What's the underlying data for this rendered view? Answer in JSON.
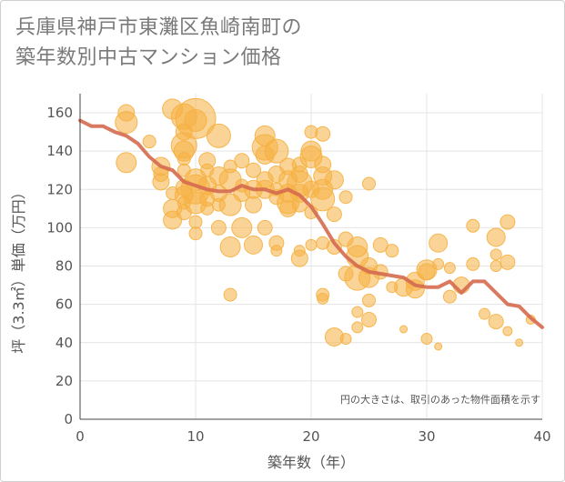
{
  "chart_data": {
    "type": "scatter",
    "title_lines": [
      "兵庫県神戸市東灘区魚崎南町の",
      "築年数別中古マンション価格"
    ],
    "xlabel": "築年数（年）",
    "ylabel": "坪（3.3㎡）単価（万円）",
    "note": "円の大きさは、取引のあった物件面積を示す",
    "xlim": [
      0,
      40
    ],
    "ylim": [
      0,
      170
    ],
    "xticks": [
      "0",
      "10",
      "20",
      "30",
      "40"
    ],
    "yticks": [
      "0",
      "20",
      "40",
      "60",
      "80",
      "100",
      "120",
      "140",
      "160"
    ],
    "grid": true,
    "colors": {
      "bubble": "#f5b041",
      "line": "#d46a4f",
      "grid": "#e4e4e4"
    },
    "series": [
      {
        "kind": "bubble",
        "points": [
          {
            "x": 4,
            "y": 160,
            "r": 9
          },
          {
            "x": 4,
            "y": 155,
            "r": 12
          },
          {
            "x": 4,
            "y": 134,
            "r": 11
          },
          {
            "x": 6,
            "y": 145,
            "r": 7
          },
          {
            "x": 7,
            "y": 132,
            "r": 10
          },
          {
            "x": 7,
            "y": 128,
            "r": 8
          },
          {
            "x": 7,
            "y": 124,
            "r": 9
          },
          {
            "x": 8,
            "y": 162,
            "r": 11
          },
          {
            "x": 8,
            "y": 110,
            "r": 10
          },
          {
            "x": 8,
            "y": 104,
            "r": 10
          },
          {
            "x": 8,
            "y": 118,
            "r": 7
          },
          {
            "x": 9,
            "y": 158,
            "r": 14
          },
          {
            "x": 9,
            "y": 150,
            "r": 9
          },
          {
            "x": 9,
            "y": 143,
            "r": 14
          },
          {
            "x": 9,
            "y": 140,
            "r": 11
          },
          {
            "x": 9,
            "y": 136,
            "r": 7
          },
          {
            "x": 9,
            "y": 130,
            "r": 7
          },
          {
            "x": 9,
            "y": 121,
            "r": 9
          },
          {
            "x": 9,
            "y": 117,
            "r": 10
          },
          {
            "x": 9,
            "y": 113,
            "r": 7
          },
          {
            "x": 9,
            "y": 108,
            "r": 8
          },
          {
            "x": 10,
            "y": 157,
            "r": 22
          },
          {
            "x": 10,
            "y": 156,
            "r": 12
          },
          {
            "x": 10,
            "y": 125,
            "r": 12
          },
          {
            "x": 10,
            "y": 120,
            "r": 16
          },
          {
            "x": 10,
            "y": 113,
            "r": 12
          },
          {
            "x": 10,
            "y": 103,
            "r": 7
          },
          {
            "x": 10,
            "y": 97,
            "r": 7
          },
          {
            "x": 11,
            "y": 135,
            "r": 9
          },
          {
            "x": 11,
            "y": 130,
            "r": 7
          },
          {
            "x": 11,
            "y": 122,
            "r": 10
          },
          {
            "x": 11,
            "y": 115,
            "r": 8
          },
          {
            "x": 11,
            "y": 110,
            "r": 7
          },
          {
            "x": 12,
            "y": 148,
            "r": 13
          },
          {
            "x": 12,
            "y": 127,
            "r": 10
          },
          {
            "x": 12,
            "y": 118,
            "r": 9
          },
          {
            "x": 12,
            "y": 112,
            "r": 7
          },
          {
            "x": 12,
            "y": 100,
            "r": 8
          },
          {
            "x": 13,
            "y": 132,
            "r": 7
          },
          {
            "x": 13,
            "y": 125,
            "r": 12
          },
          {
            "x": 13,
            "y": 112,
            "r": 12
          },
          {
            "x": 13,
            "y": 90,
            "r": 11
          },
          {
            "x": 13,
            "y": 65,
            "r": 7
          },
          {
            "x": 14,
            "y": 135,
            "r": 8
          },
          {
            "x": 14,
            "y": 122,
            "r": 7
          },
          {
            "x": 14,
            "y": 118,
            "r": 9
          },
          {
            "x": 14,
            "y": 100,
            "r": 11
          },
          {
            "x": 15,
            "y": 130,
            "r": 8
          },
          {
            "x": 15,
            "y": 120,
            "r": 10
          },
          {
            "x": 15,
            "y": 112,
            "r": 9
          },
          {
            "x": 15,
            "y": 91,
            "r": 10
          },
          {
            "x": 16,
            "y": 148,
            "r": 11
          },
          {
            "x": 16,
            "y": 142,
            "r": 14
          },
          {
            "x": 16,
            "y": 138,
            "r": 10
          },
          {
            "x": 16,
            "y": 125,
            "r": 9
          },
          {
            "x": 16,
            "y": 120,
            "r": 10
          },
          {
            "x": 16,
            "y": 100,
            "r": 8
          },
          {
            "x": 17,
            "y": 140,
            "r": 13
          },
          {
            "x": 17,
            "y": 128,
            "r": 9
          },
          {
            "x": 17,
            "y": 120,
            "r": 7
          },
          {
            "x": 17,
            "y": 116,
            "r": 8
          },
          {
            "x": 17,
            "y": 92,
            "r": 8
          },
          {
            "x": 17,
            "y": 88,
            "r": 6
          },
          {
            "x": 18,
            "y": 132,
            "r": 9
          },
          {
            "x": 18,
            "y": 125,
            "r": 10
          },
          {
            "x": 18,
            "y": 118,
            "r": 10
          },
          {
            "x": 18,
            "y": 113,
            "r": 12
          },
          {
            "x": 18,
            "y": 110,
            "r": 9
          },
          {
            "x": 19,
            "y": 133,
            "r": 8
          },
          {
            "x": 19,
            "y": 128,
            "r": 9
          },
          {
            "x": 19,
            "y": 123,
            "r": 14
          },
          {
            "x": 19,
            "y": 118,
            "r": 10
          },
          {
            "x": 19,
            "y": 112,
            "r": 8
          },
          {
            "x": 19,
            "y": 88,
            "r": 6
          },
          {
            "x": 19,
            "y": 84,
            "r": 9
          },
          {
            "x": 20,
            "y": 150,
            "r": 7
          },
          {
            "x": 20,
            "y": 140,
            "r": 11
          },
          {
            "x": 20,
            "y": 137,
            "r": 12
          },
          {
            "x": 20,
            "y": 120,
            "r": 9
          },
          {
            "x": 20,
            "y": 108,
            "r": 7
          },
          {
            "x": 20,
            "y": 91,
            "r": 6
          },
          {
            "x": 21,
            "y": 149,
            "r": 8
          },
          {
            "x": 21,
            "y": 133,
            "r": 9
          },
          {
            "x": 21,
            "y": 127,
            "r": 10
          },
          {
            "x": 21,
            "y": 120,
            "r": 11
          },
          {
            "x": 21,
            "y": 115,
            "r": 13
          },
          {
            "x": 21,
            "y": 92,
            "r": 7
          },
          {
            "x": 21,
            "y": 65,
            "r": 7
          },
          {
            "x": 21,
            "y": 63,
            "r": 6
          },
          {
            "x": 22,
            "y": 125,
            "r": 10
          },
          {
            "x": 22,
            "y": 107,
            "r": 8
          },
          {
            "x": 22,
            "y": 90,
            "r": 8
          },
          {
            "x": 22,
            "y": 43,
            "r": 10
          },
          {
            "x": 23,
            "y": 116,
            "r": 7
          },
          {
            "x": 23,
            "y": 94,
            "r": 8
          },
          {
            "x": 23,
            "y": 76,
            "r": 8
          },
          {
            "x": 23,
            "y": 42,
            "r": 6
          },
          {
            "x": 24,
            "y": 90,
            "r": 11
          },
          {
            "x": 24,
            "y": 85,
            "r": 12
          },
          {
            "x": 24,
            "y": 74,
            "r": 14
          },
          {
            "x": 24,
            "y": 56,
            "r": 6
          },
          {
            "x": 24,
            "y": 48,
            "r": 6
          },
          {
            "x": 25,
            "y": 123,
            "r": 7
          },
          {
            "x": 25,
            "y": 80,
            "r": 9
          },
          {
            "x": 25,
            "y": 74,
            "r": 11
          },
          {
            "x": 25,
            "y": 62,
            "r": 7
          },
          {
            "x": 25,
            "y": 52,
            "r": 8
          },
          {
            "x": 26,
            "y": 91,
            "r": 8
          },
          {
            "x": 26,
            "y": 77,
            "r": 8
          },
          {
            "x": 27,
            "y": 88,
            "r": 7
          },
          {
            "x": 27,
            "y": 69,
            "r": 6
          },
          {
            "x": 28,
            "y": 69,
            "r": 10
          },
          {
            "x": 28,
            "y": 47,
            "r": 4
          },
          {
            "x": 29,
            "y": 72,
            "r": 10
          },
          {
            "x": 29,
            "y": 68,
            "r": 10
          },
          {
            "x": 30,
            "y": 78,
            "r": 11
          },
          {
            "x": 30,
            "y": 77,
            "r": 9
          },
          {
            "x": 30,
            "y": 42,
            "r": 6
          },
          {
            "x": 31,
            "y": 92,
            "r": 10
          },
          {
            "x": 31,
            "y": 81,
            "r": 6
          },
          {
            "x": 31,
            "y": 38,
            "r": 4
          },
          {
            "x": 32,
            "y": 79,
            "r": 6
          },
          {
            "x": 32,
            "y": 64,
            "r": 7
          },
          {
            "x": 33,
            "y": 70,
            "r": 9
          },
          {
            "x": 34,
            "y": 101,
            "r": 7
          },
          {
            "x": 34,
            "y": 81,
            "r": 7
          },
          {
            "x": 35,
            "y": 55,
            "r": 6
          },
          {
            "x": 36,
            "y": 95,
            "r": 10
          },
          {
            "x": 36,
            "y": 86,
            "r": 6
          },
          {
            "x": 36,
            "y": 80,
            "r": 6
          },
          {
            "x": 36,
            "y": 51,
            "r": 8
          },
          {
            "x": 37,
            "y": 103,
            "r": 8
          },
          {
            "x": 37,
            "y": 82,
            "r": 8
          },
          {
            "x": 37,
            "y": 46,
            "r": 5
          },
          {
            "x": 38,
            "y": 40,
            "r": 4
          },
          {
            "x": 39,
            "y": 52,
            "r": 5
          }
        ]
      },
      {
        "kind": "line",
        "x": [
          0,
          1,
          2,
          3,
          4,
          5,
          6,
          7,
          8,
          9,
          10,
          11,
          12,
          13,
          14,
          15,
          16,
          17,
          18,
          19,
          20,
          21,
          22,
          23,
          24,
          25,
          26,
          27,
          28,
          29,
          30,
          31,
          32,
          33,
          34,
          35,
          36,
          37,
          38,
          39,
          40
        ],
        "y": [
          156,
          153,
          153,
          150,
          148,
          144,
          137,
          132,
          130,
          124,
          122,
          120,
          119,
          119,
          122,
          120,
          120,
          118,
          120,
          117,
          111,
          102,
          92,
          85,
          80,
          77,
          76,
          75,
          74,
          70,
          69,
          69,
          72,
          66,
          72,
          72,
          66,
          60,
          59,
          53,
          48
        ]
      }
    ]
  }
}
